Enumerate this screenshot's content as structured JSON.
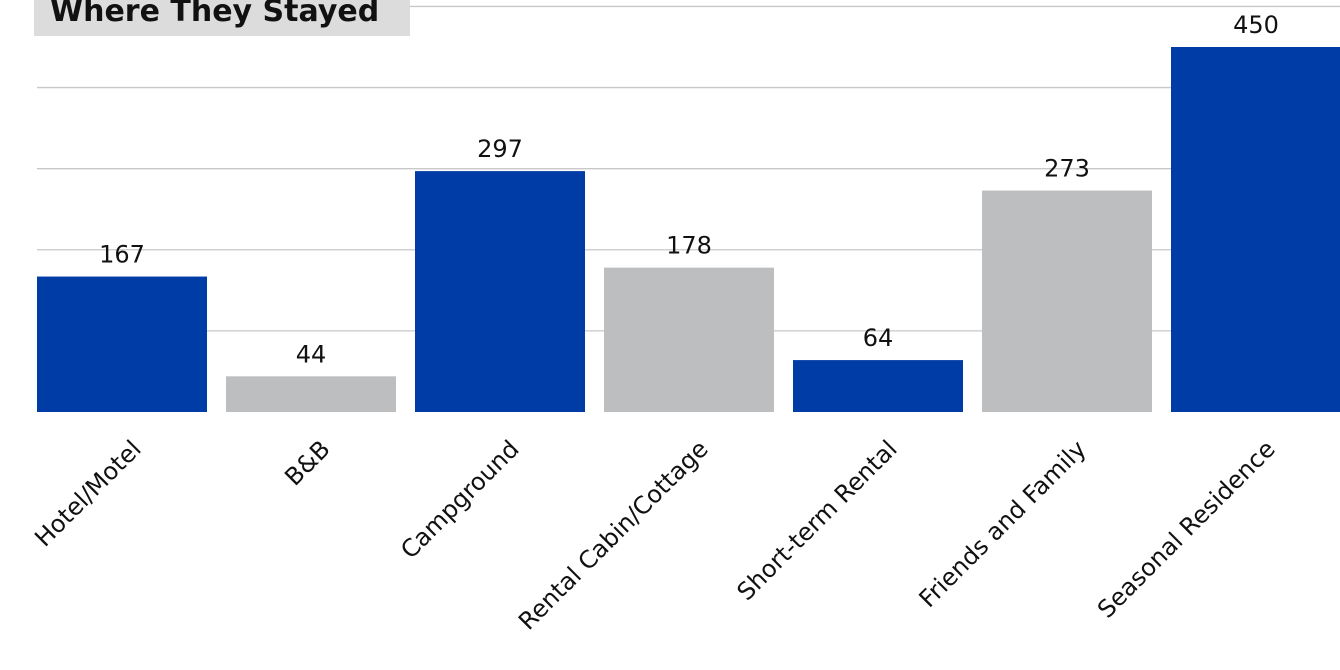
{
  "chart_data": {
    "type": "bar",
    "title": "Where They Stayed",
    "xlabel": "",
    "ylabel": "",
    "categories": [
      "Hotel/Motel",
      "B&B",
      "Campground",
      "Rental Cabin/Cottage",
      "Short-term Rental",
      "Friends and Family",
      "Seasonal Residence"
    ],
    "values": [
      167,
      44,
      297,
      178,
      64,
      273,
      450
    ],
    "ylim": [
      0,
      500
    ],
    "grid": true,
    "legend": "none",
    "bar_colors": [
      "#003ca6",
      "#bdbec0",
      "#003ca6",
      "#bdbec0",
      "#003ca6",
      "#bdbec0",
      "#003ca6"
    ],
    "gridline_color": "#c8c8c8",
    "title_background": "#dcdcdc"
  }
}
